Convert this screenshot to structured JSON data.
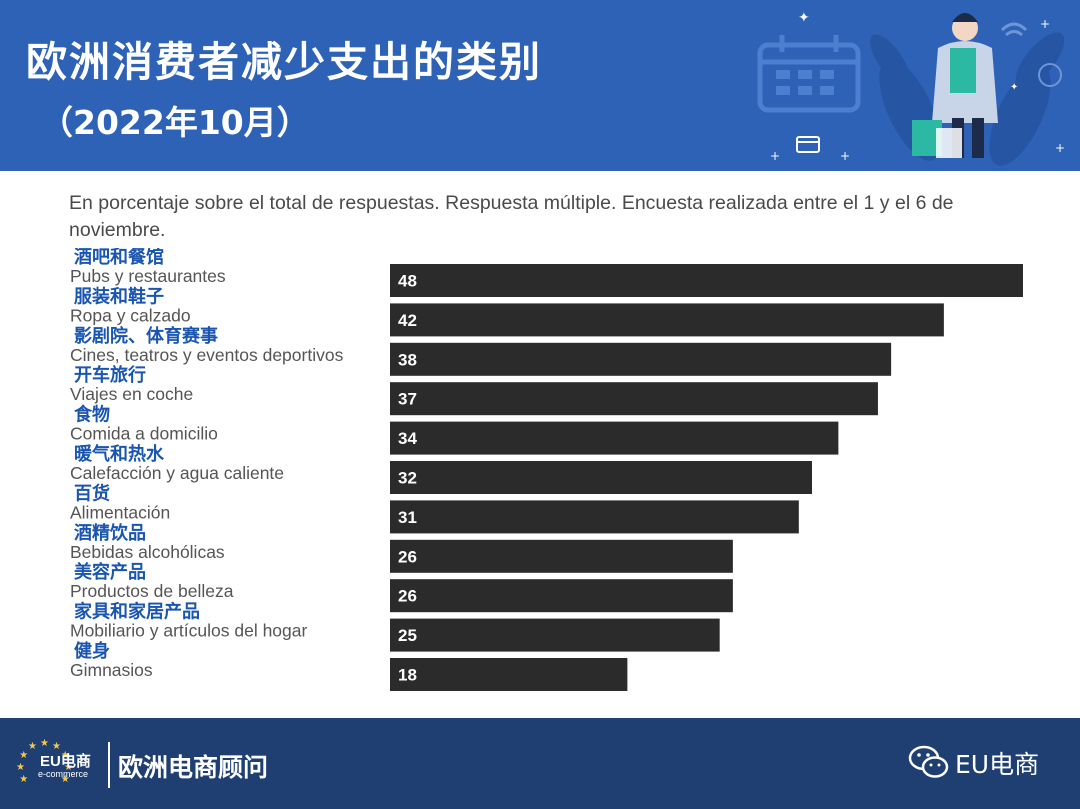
{
  "header": {
    "title": "欧洲消费者减少支出的类别",
    "subtitle": "（2022年10月）"
  },
  "note": "En porcentaje sobre el total de respuestas. Respuesta múltiple. Encuesta realizada entre el 1 y el 6 de noviembre.",
  "footer": {
    "logo_text": "EU电商",
    "logo_sub": "e-commerce",
    "brand": "欧洲电商顾问",
    "wechat_label": "EU电商"
  },
  "colors": {
    "header_bg": "#2d62b6",
    "footer_bg": "#1f3f73",
    "bar": "#2b2b2b",
    "zh_label": "#1a56b0",
    "es_label": "#555555"
  },
  "chart_data": {
    "type": "bar",
    "orientation": "horizontal",
    "categories_zh": [
      "酒吧和餐馆",
      "服装和鞋子",
      "影剧院、体育赛事",
      "开车旅行",
      "食物",
      "暖气和热水",
      "百货",
      "酒精饮品",
      "美容产品",
      "家具和家居产品",
      "健身"
    ],
    "categories": [
      "Pubs y restaurantes",
      "Ropa y calzado",
      "Cines, teatros y eventos deportivos",
      "Viajes en coche",
      "Comida a domicilio",
      "Calefacción y agua caliente",
      "Alimentación",
      "Bebidas alcohólicas",
      "Productos de belleza",
      "Mobiliario y artículos del hogar",
      "Gimnasios"
    ],
    "values": [
      48,
      42,
      38,
      37,
      34,
      32,
      31,
      26,
      26,
      25,
      18
    ],
    "xlim": [
      0,
      48
    ],
    "grid": false,
    "legend": "none",
    "data_labels": "inside-start"
  }
}
